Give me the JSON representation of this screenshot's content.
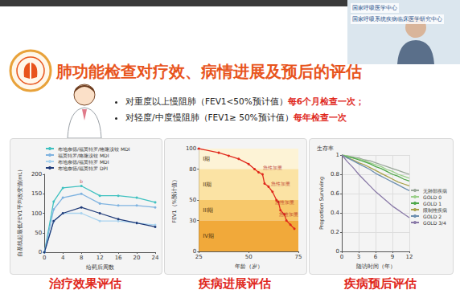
{
  "header": {
    "title": "肺功能检查对疗效、病情进展及预后的评估",
    "webcam_labels": [
      "国家呼吸医学中心",
      "国家呼吸系统疾病临床医学研究中心"
    ]
  },
  "bullets": [
    [
      {
        "text": "对重度以上慢阻肺（FEV1<50%预计值）"
      },
      {
        "text": "每6个月检查一次；",
        "color": "#e0281c"
      }
    ],
    [
      {
        "text": "对轻度/中度慢阻肺（FEV1≥ 50%预计值）"
      },
      {
        "text": "每年检查一次",
        "color": "#e0281c"
      }
    ]
  ],
  "chart_data": [
    {
      "type": "line",
      "caption": "治疗效果评估",
      "x_label": "给药后周数",
      "y_label": "自基线起最低FEV1平均改变值(mL)",
      "x": [
        0,
        2,
        4,
        8,
        12,
        16,
        20,
        24
      ],
      "series": [
        {
          "name": "布地奈德/福莫特罗/格隆溴铵 MDI",
          "color": "#3fc1c0",
          "values": [
            0,
            130,
            165,
            170,
            145,
            145,
            140,
            128
          ]
        },
        {
          "name": "福莫特罗/格隆溴铵 MDI",
          "color": "#7fb3e0",
          "values": [
            0,
            110,
            140,
            150,
            125,
            120,
            120,
            115
          ]
        },
        {
          "name": "布地奈德/福莫特罗 MDI",
          "color": "#a9d3ef",
          "values": [
            0,
            80,
            100,
            100,
            80,
            80,
            75,
            70
          ]
        },
        {
          "name": "布地奈德/福莫特罗 DPI",
          "color": "#1f3a78",
          "values": [
            0,
            80,
            100,
            115,
            100,
            85,
            75,
            65
          ]
        }
      ],
      "xlim": [
        0,
        24
      ],
      "xticks": [
        0,
        4,
        8,
        12,
        16,
        20,
        24
      ],
      "ylim": [
        0,
        200
      ],
      "yticks": [
        0,
        50,
        100,
        150,
        200
      ],
      "grid": false,
      "legend": "upper left",
      "marker": "circle",
      "annotations": [
        {
          "text": "b",
          "x": 8,
          "y": 182
        }
      ]
    },
    {
      "type": "line",
      "caption": "疾病进展评估",
      "x_label": "年龄（岁）",
      "y_label": "FEV1（%预计值）",
      "x": [
        25,
        35,
        40,
        45,
        50,
        53,
        55,
        57,
        58,
        60,
        62,
        64,
        65,
        66,
        68,
        69,
        71,
        73
      ],
      "series": [
        {
          "color": "#e0281c",
          "values": [
            100,
            96,
            93,
            90,
            85,
            80,
            77,
            75,
            66,
            63,
            58,
            50,
            48,
            40,
            36,
            30,
            26,
            22
          ]
        }
      ],
      "xlim": [
        25,
        75
      ],
      "xticks": [
        25,
        50,
        75
      ],
      "ylim": [
        0,
        100
      ],
      "yticks": [
        0,
        30,
        50,
        80,
        100
      ],
      "grid": false,
      "marker": "circle",
      "bands": [
        {
          "label": "I期",
          "from": 80,
          "to": 100,
          "color": "#fdf3d6"
        },
        {
          "label": "II期",
          "from": 50,
          "to": 80,
          "color": "#fbe3a4"
        },
        {
          "label": "III期",
          "from": 30,
          "to": 50,
          "color": "#f7c86a"
        },
        {
          "label": "IV期",
          "from": 0,
          "to": 30,
          "color": "#f1a93a"
        }
      ],
      "annotations": [
        {
          "text": "急性加重",
          "x": 62,
          "y": 82
        },
        {
          "text": "急性加重",
          "x": 66,
          "y": 66
        },
        {
          "text": "急性加重",
          "x": 68,
          "y": 48
        },
        {
          "text": "急性加重",
          "x": 70,
          "y": 36
        }
      ]
    },
    {
      "type": "line",
      "title": "生存率",
      "caption": "疾病预后评估",
      "x_label": "随访时间（年）",
      "y_label": "Proportion Surviving",
      "x": [
        0,
        1,
        2,
        3,
        4,
        5,
        6,
        7,
        8,
        9,
        10,
        11,
        12
      ],
      "series": [
        {
          "name": "无肺部疾病",
          "color": "#9aa89a",
          "values": [
            1,
            0.99,
            0.98,
            0.97,
            0.95,
            0.94,
            0.92,
            0.9,
            0.88,
            0.86,
            0.84,
            0.82,
            0.8
          ]
        },
        {
          "name": "GOLD 0",
          "color": "#9bd08a",
          "values": [
            1,
            0.99,
            0.97,
            0.96,
            0.94,
            0.92,
            0.9,
            0.88,
            0.85,
            0.83,
            0.8,
            0.78,
            0.76
          ]
        },
        {
          "name": "GOLD 1",
          "color": "#4fa84a",
          "values": [
            1,
            0.98,
            0.97,
            0.95,
            0.93,
            0.91,
            0.88,
            0.86,
            0.83,
            0.8,
            0.78,
            0.75,
            0.73
          ]
        },
        {
          "name": "限制性疾病",
          "color": "#a8a24a",
          "values": [
            1,
            0.97,
            0.95,
            0.92,
            0.9,
            0.87,
            0.84,
            0.81,
            0.78,
            0.75,
            0.72,
            0.7,
            0.68
          ]
        },
        {
          "name": "GOLD 2",
          "color": "#6d8fb0",
          "values": [
            1,
            0.97,
            0.94,
            0.91,
            0.88,
            0.85,
            0.81,
            0.78,
            0.75,
            0.72,
            0.69,
            0.66,
            0.63
          ]
        },
        {
          "name": "GOLD 3/4",
          "color": "#8a7aa8",
          "values": [
            1,
            0.93,
            0.87,
            0.8,
            0.74,
            0.68,
            0.62,
            0.57,
            0.52,
            0.47,
            0.43,
            0.39,
            0.35
          ]
        }
      ],
      "xlim": [
        0,
        12
      ],
      "xticks": [
        0,
        3,
        6,
        9,
        12
      ],
      "ylim": [
        0,
        1
      ],
      "yticks": [
        0,
        0.2,
        0.4,
        0.6,
        0.8,
        1
      ],
      "grid": true,
      "legend": "right",
      "marker": "none"
    }
  ]
}
